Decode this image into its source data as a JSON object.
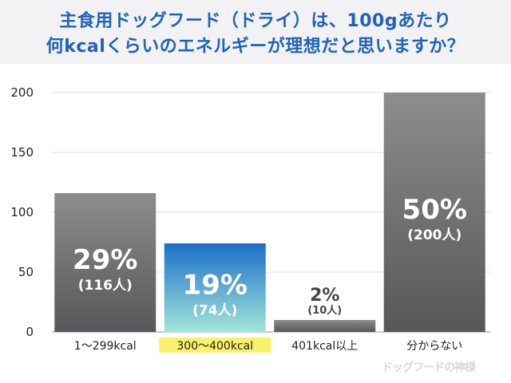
{
  "header": {
    "title_line1": "主食用ドッグフード（ドライ）は、100gあたり",
    "title_line2": "何kcalくらいのエネルギーが理想だと思いますか？"
  },
  "watermark": "ドッグフードの神様",
  "colors": {
    "title": "#1f63b8",
    "bar_gray_top": "#8a8a8c",
    "bar_gray_bottom": "#5a5a5c",
    "bar_highlight_top": "#1a72c9",
    "bar_highlight_bottom": "#9fe3d9",
    "highlight_label_bg": "#f7f26a"
  },
  "chart_data": {
    "type": "bar",
    "ylim": [
      0,
      200
    ],
    "yticks": [
      0,
      50,
      100,
      150,
      200
    ],
    "categories": [
      "1〜299kcal",
      "300〜400kcal",
      "401kcal以上",
      "分からない"
    ],
    "values": [
      116,
      74,
      10,
      200
    ],
    "percent_labels": [
      "29%",
      "19%",
      "2%",
      "50%"
    ],
    "count_labels": [
      "(116人)",
      "(74人)",
      "(10人)",
      "(200人)"
    ],
    "highlight_index": 1,
    "grid": true
  }
}
